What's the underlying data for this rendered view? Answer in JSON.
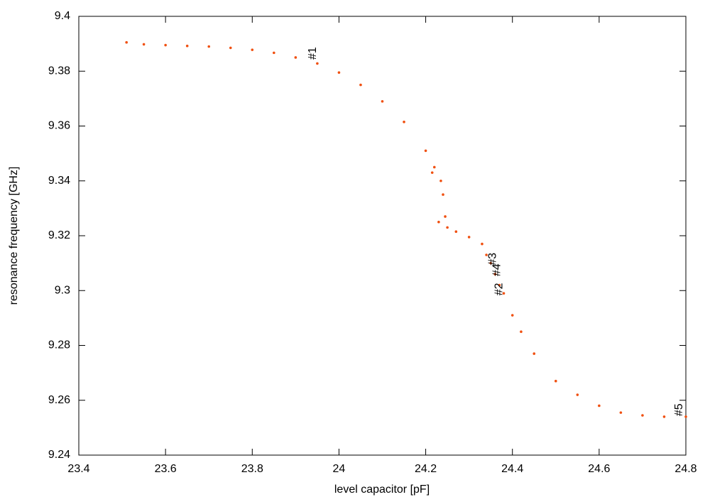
{
  "chart_data": {
    "type": "scatter",
    "x_label": "level capacitor [pF]",
    "y_label": "resonance frequency [GHz]",
    "xlim": [
      23.4,
      24.8
    ],
    "ylim": [
      9.24,
      9.4
    ],
    "xticks": [
      23.4,
      23.6,
      23.8,
      24,
      24.2,
      24.4,
      24.6,
      24.8
    ],
    "yticks": [
      9.24,
      9.26,
      9.28,
      9.3,
      9.32,
      9.34,
      9.36,
      9.38,
      9.4
    ],
    "color": "#f05010",
    "x": [
      23.51,
      23.55,
      23.6,
      23.65,
      23.7,
      23.75,
      23.8,
      23.85,
      23.9,
      23.95,
      24.0,
      24.05,
      24.1,
      24.15,
      24.2,
      24.22,
      24.235,
      24.24,
      24.245,
      24.25,
      24.27,
      24.3,
      24.33,
      24.34,
      24.35,
      24.36,
      24.37,
      24.38,
      24.4,
      24.42,
      24.45,
      24.5,
      24.55,
      24.6,
      24.65,
      24.7,
      24.75,
      24.8,
      24.23,
      24.215
    ],
    "values": [
      9.3905,
      9.3898,
      9.3895,
      9.3892,
      9.389,
      9.3885,
      9.3878,
      9.3867,
      9.385,
      9.3828,
      9.3795,
      9.375,
      9.369,
      9.3615,
      9.351,
      9.345,
      9.34,
      9.335,
      9.327,
      9.323,
      9.3215,
      9.3195,
      9.317,
      9.313,
      9.31,
      9.306,
      9.302,
      9.299,
      9.291,
      9.285,
      9.277,
      9.267,
      9.262,
      9.258,
      9.2555,
      9.2545,
      9.254,
      9.254,
      9.325,
      9.343
    ],
    "annotations": [
      {
        "text": "#1",
        "x": 23.94,
        "y": 9.3865
      },
      {
        "text": "#2",
        "x": 24.37,
        "y": 9.3005
      },
      {
        "text": "#3",
        "x": 24.355,
        "y": 9.3115
      },
      {
        "text": "#4",
        "x": 24.365,
        "y": 9.3075
      },
      {
        "text": "#5",
        "x": 24.785,
        "y": 9.2565
      }
    ]
  }
}
